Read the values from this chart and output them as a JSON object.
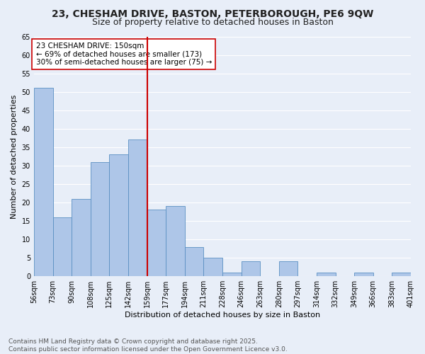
{
  "title_line1": "23, CHESHAM DRIVE, BASTON, PETERBOROUGH, PE6 9QW",
  "title_line2": "Size of property relative to detached houses in Baston",
  "xlabel": "Distribution of detached houses by size in Baston",
  "ylabel": "Number of detached properties",
  "bar_values": [
    51,
    16,
    21,
    31,
    33,
    37,
    18,
    19,
    8,
    5,
    1,
    4,
    0,
    4,
    0,
    1,
    0,
    1,
    0,
    1
  ],
  "categories": [
    "56sqm",
    "73sqm",
    "90sqm",
    "108sqm",
    "125sqm",
    "142sqm",
    "159sqm",
    "177sqm",
    "194sqm",
    "211sqm",
    "228sqm",
    "246sqm",
    "263sqm",
    "280sqm",
    "297sqm",
    "314sqm",
    "332sqm",
    "349sqm",
    "366sqm",
    "383sqm",
    "401sqm"
  ],
  "bar_color": "#aec6e8",
  "bar_edge_color": "#5a8fc2",
  "bg_color": "#e8eef8",
  "grid_color": "#ffffff",
  "vline_color": "#cc0000",
  "annotation_text": "23 CHESHAM DRIVE: 150sqm\n← 69% of detached houses are smaller (173)\n30% of semi-detached houses are larger (75) →",
  "annotation_box_color": "#ffffff",
  "annotation_box_edge": "#cc0000",
  "ylim": [
    0,
    65
  ],
  "yticks": [
    0,
    5,
    10,
    15,
    20,
    25,
    30,
    35,
    40,
    45,
    50,
    55,
    60,
    65
  ],
  "footnote": "Contains HM Land Registry data © Crown copyright and database right 2025.\nContains public sector information licensed under the Open Government Licence v3.0.",
  "title_fontsize": 10,
  "subtitle_fontsize": 9,
  "axis_label_fontsize": 8,
  "tick_fontsize": 7,
  "annotation_fontsize": 7.5,
  "footnote_fontsize": 6.5
}
